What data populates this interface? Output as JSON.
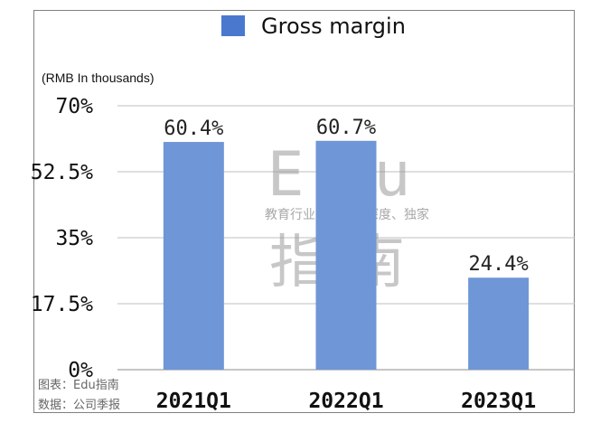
{
  "chart_data": {
    "type": "bar",
    "categories": [
      "2021Q1",
      "2022Q1",
      "2023Q1"
    ],
    "series": [
      {
        "name": "Gross margin",
        "values": [
          60.4,
          60.7,
          24.4
        ],
        "labels": [
          "60.4%",
          "60.7%",
          "24.4%"
        ],
        "color": "#6f96d6"
      }
    ],
    "unit_note": "(RMB In thousands)",
    "ylim": [
      0,
      70
    ],
    "yticks": [
      0,
      17.5,
      35,
      52.5,
      70
    ],
    "ytick_labels": [
      "0%",
      "17.5%",
      "35%",
      "52.5%",
      "70%"
    ],
    "grid": true,
    "legend": "top-center",
    "legend_color": "#4a78cf"
  },
  "watermark": {
    "big_latin": "Edu",
    "tagline": "教育行业、前沿、深度、独家",
    "big_cjk": "指南"
  },
  "footnotes": {
    "chart_credit": "图表：Edu指南",
    "data_source": "数据：公司季报"
  }
}
